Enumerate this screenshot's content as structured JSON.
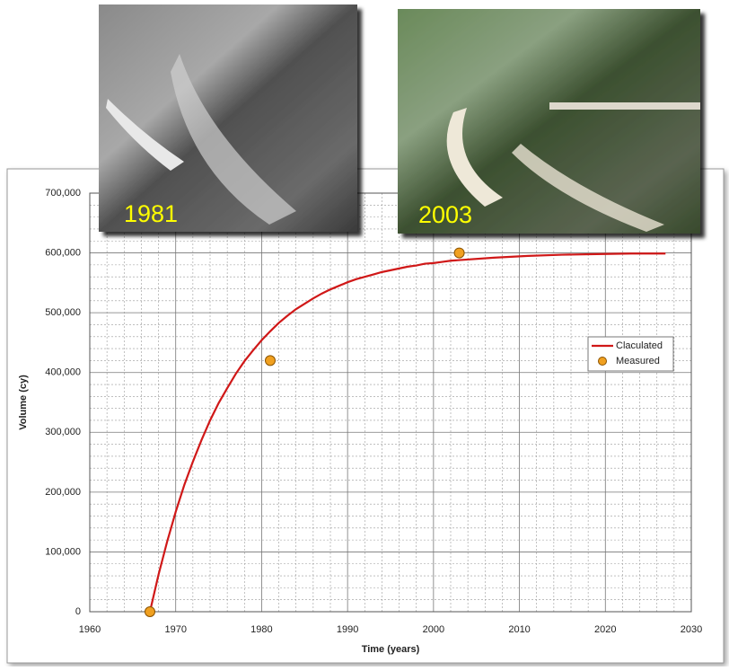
{
  "chart_data": {
    "type": "line",
    "xlabel": "Time (years)",
    "ylabel": "Volume (cy)",
    "xlim": [
      1960,
      2030
    ],
    "xticks": [
      1960,
      1970,
      1980,
      1990,
      2000,
      2010,
      2020,
      2030
    ],
    "ylim": [
      0,
      700000
    ],
    "yticks": [
      0,
      {
        "value": 100000,
        "label": "100,000"
      },
      {
        "value": 200000,
        "label": "200,000"
      },
      {
        "value": 300000,
        "label": "300,000"
      },
      {
        "value": 400000,
        "label": "400,000"
      },
      {
        "value": 500000,
        "label": "500,000"
      },
      {
        "value": 600000,
        "label": "600,000"
      },
      {
        "value": 700000,
        "label": "700,000"
      }
    ],
    "grid": true,
    "legend": "right",
    "series": [
      {
        "name": "Claculated",
        "type": "line",
        "color": "#d01818",
        "x": [
          1967,
          1968,
          1969,
          1970,
          1971,
          1972,
          1973,
          1974,
          1975,
          1976,
          1977,
          1978,
          1979,
          1980,
          1981,
          1982,
          1983,
          1984,
          1985,
          1986,
          1987,
          1988,
          1989,
          1990,
          1991,
          1992,
          1993,
          1994,
          1995,
          1996,
          1997,
          1998,
          1999,
          2000,
          2001,
          2002,
          2003,
          2007,
          2011,
          2015,
          2019,
          2023,
          2027
        ],
        "values": [
          0,
          62000,
          117000,
          167000,
          212000,
          251000,
          287000,
          320000,
          349000,
          374000,
          398000,
          419000,
          437000,
          454000,
          469000,
          483000,
          495000,
          506000,
          515000,
          524000,
          532000,
          539000,
          545000,
          551000,
          556000,
          560000,
          564000,
          568000,
          571000,
          574000,
          577000,
          579000,
          582000,
          583000,
          585000,
          587000,
          588000,
          592000,
          595000,
          597000,
          598000,
          599000,
          599000
        ]
      },
      {
        "name": "Measured",
        "type": "scatter",
        "color": "#f0a020",
        "x": [
          1967,
          1981,
          2003
        ],
        "values": [
          0,
          420000,
          600000
        ]
      }
    ],
    "photos": [
      {
        "caption": "1981"
      },
      {
        "caption": "2003"
      }
    ]
  }
}
